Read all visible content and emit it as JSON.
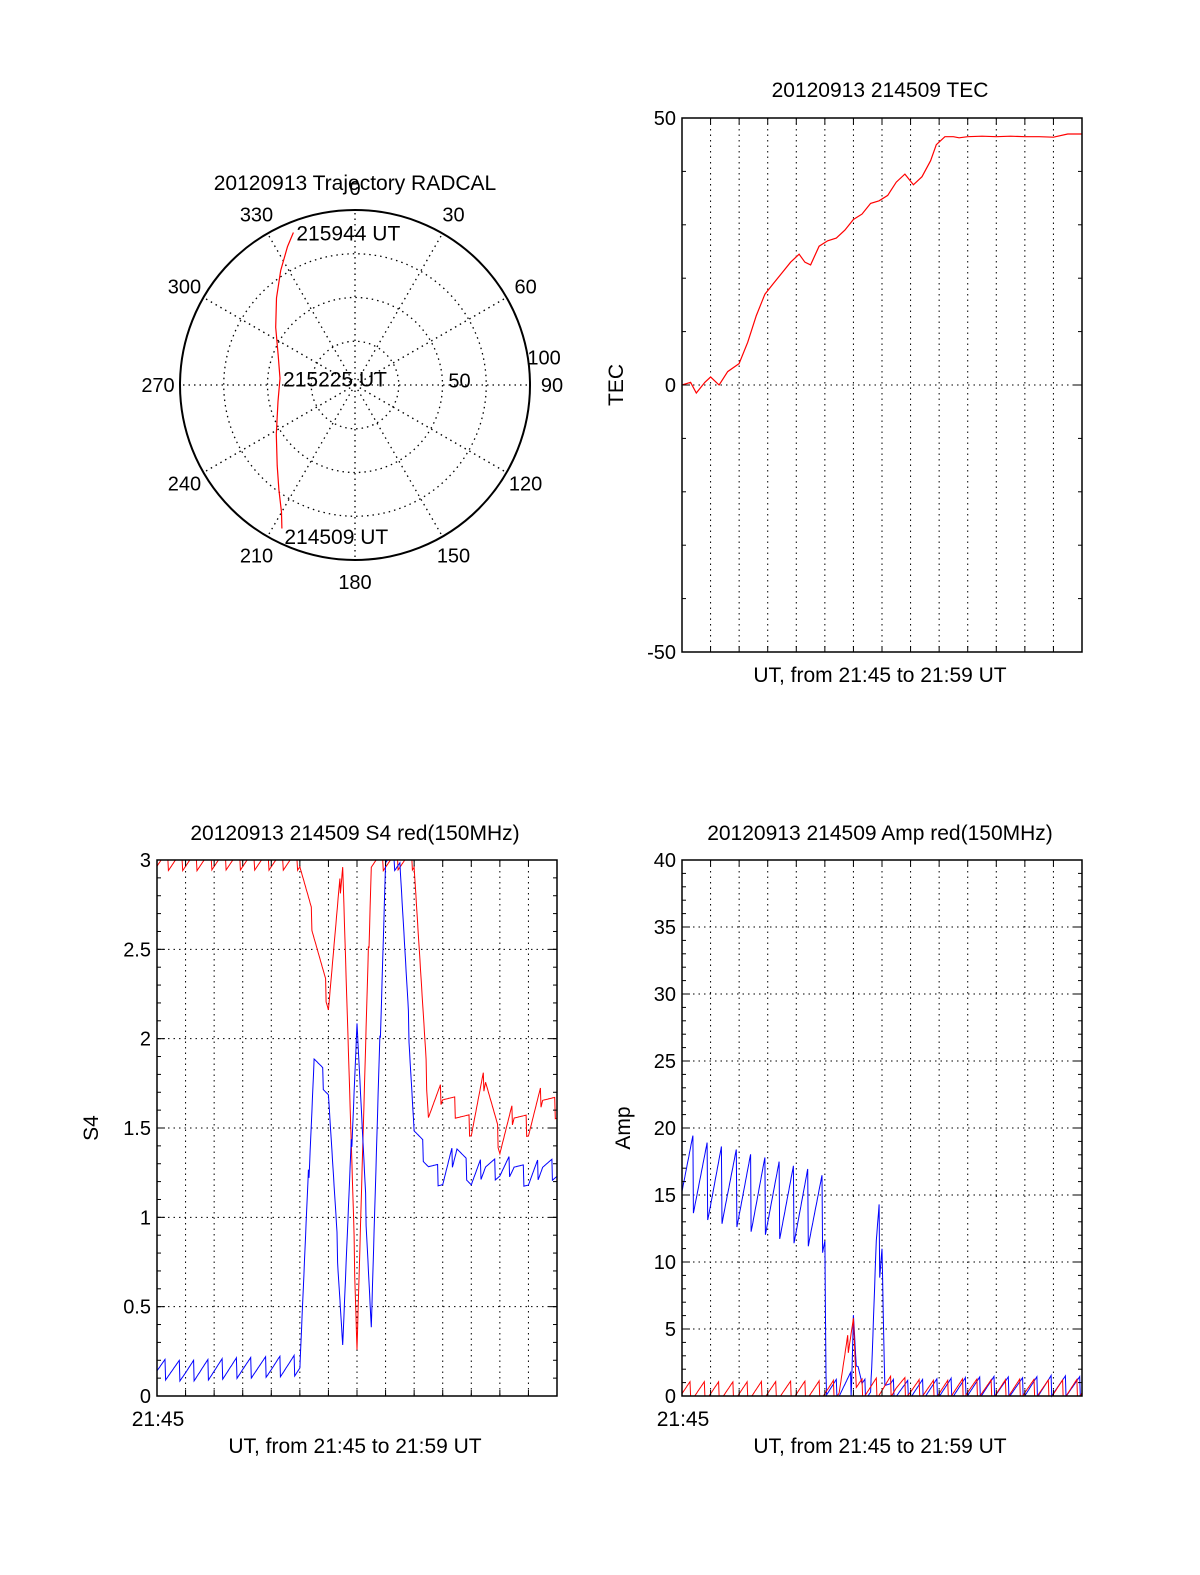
{
  "colors": {
    "red": "#ff0000",
    "blue": "#0000ff",
    "axis": "#000000",
    "grid": "#000000"
  },
  "chart_data": [
    {
      "type": "polar",
      "title": "20120913 Trajectory RADCAL",
      "azimuth_labels": [
        "0",
        "30",
        "60",
        "90",
        "120",
        "150",
        "180",
        "210",
        "240",
        "270",
        "300",
        "330"
      ],
      "radius_labels": [
        "50",
        "100"
      ],
      "rlim": [
        0,
        100
      ],
      "grid": true,
      "series": [
        {
          "color": "#ff0000",
          "points": [
            [
              207,
              92
            ],
            [
              210,
              84
            ],
            [
              216,
              74
            ],
            [
              224,
              64
            ],
            [
              238,
              53
            ],
            [
              258,
              45
            ],
            [
              275,
              43
            ],
            [
              291,
              47
            ],
            [
              306,
              56
            ],
            [
              318,
              67
            ],
            [
              327,
              78
            ],
            [
              334,
              88
            ],
            [
              338,
              94
            ]
          ]
        }
      ],
      "annotations": [
        {
          "text": "214509 UT",
          "at_az": 206,
          "at_r": 96
        },
        {
          "text": "215225 UT",
          "at_az": 275,
          "at_r": 43
        },
        {
          "text": "215944 UT",
          "at_az": 338,
          "at_r": 94
        }
      ]
    },
    {
      "type": "line",
      "title": "20120913 214509 TEC",
      "ylabel": "TEC",
      "xlabel": "UT, from 21:45 to 21:59 UT",
      "xlim": [
        0,
        14
      ],
      "ylim": [
        -50,
        50
      ],
      "yticks": [
        "50",
        "0",
        "-50"
      ],
      "grid": true,
      "series": [
        {
          "color": "#ff0000",
          "x": [
            0,
            0.3,
            0.5,
            0.8,
            1.0,
            1.3,
            1.6,
            2.0,
            2.3,
            2.6,
            2.9,
            3.2,
            3.5,
            3.8,
            4.1,
            4.3,
            4.5,
            4.8,
            5.1,
            5.4,
            5.7,
            6.0,
            6.3,
            6.6,
            6.9,
            7.2,
            7.5,
            7.8,
            8.1,
            8.4,
            8.7,
            8.9,
            9.2,
            9.5,
            9.7,
            10.0,
            10.5,
            11.0,
            11.5,
            12.0,
            12.5,
            13.0,
            13.5,
            14.0
          ],
          "y": [
            0,
            0.5,
            -1.5,
            0.5,
            1.5,
            0,
            2.5,
            4,
            8,
            13,
            17,
            19,
            21,
            23,
            24.5,
            23,
            22.5,
            26,
            27,
            27.5,
            29,
            31,
            32,
            34,
            34.5,
            35.5,
            38,
            39.5,
            37.5,
            39,
            42,
            45,
            46.5,
            46.5,
            46.3,
            46.5,
            46.6,
            46.5,
            46.6,
            46.5,
            46.5,
            46.4,
            47,
            47
          ]
        }
      ]
    },
    {
      "type": "line",
      "title": "20120913 214509 S4 red(150MHz)",
      "ylabel": "S4",
      "xlabel": "UT, from 21:45 to 21:59 UT",
      "x_start_label": "21:45",
      "xlim": [
        0,
        14
      ],
      "ylim": [
        0,
        3
      ],
      "yticks": [
        "0",
        "0.5",
        "1",
        "1.5",
        "2",
        "2.5",
        "3"
      ],
      "grid": true,
      "series": [
        {
          "color": "#ff0000",
          "x": [
            0,
            1,
            2,
            3,
            4,
            5,
            6,
            6.5,
            7,
            7.5,
            8,
            8.5,
            9,
            9.5,
            10,
            10.5,
            11,
            11.5,
            12,
            12.5,
            13,
            13.5,
            14
          ],
          "y": [
            3,
            3,
            3,
            3,
            3,
            3,
            2.2,
            3,
            0.3,
            3,
            3,
            3,
            3,
            1.6,
            1.7,
            1.6,
            1.5,
            1.8,
            1.4,
            1.6,
            1.5,
            1.7,
            1.6
          ]
        },
        {
          "color": "#0000ff",
          "x": [
            0,
            1,
            2,
            3,
            4,
            5,
            5.5,
            6,
            6.5,
            7,
            7.5,
            8,
            8.5,
            9,
            9.5,
            10,
            10.5,
            11,
            11.5,
            12,
            12.5,
            13,
            13.5,
            14
          ],
          "y": [
            0.15,
            0.14,
            0.15,
            0.16,
            0.16,
            0.17,
            1.9,
            1.7,
            0.3,
            2.1,
            0.4,
            3,
            3,
            1.5,
            1.3,
            1.2,
            1.4,
            1.2,
            1.3,
            1.25,
            1.3,
            1.2,
            1.3,
            1.25
          ]
        }
      ]
    },
    {
      "type": "line",
      "title": "20120913 214509 Amp red(150MHz)",
      "ylabel": "Amp",
      "xlabel": "UT, from 21:45 to 21:59 UT",
      "x_start_label": "21:45",
      "xlim": [
        0,
        14
      ],
      "ylim": [
        0,
        40
      ],
      "yticks": [
        "0",
        "5",
        "10",
        "15",
        "20",
        "25",
        "30",
        "35",
        "40"
      ],
      "grid": true,
      "series": [
        {
          "color": "#0000ff",
          "x": [
            0,
            0.5,
            1,
            1.5,
            2,
            2.5,
            3,
            3.5,
            4,
            4.5,
            5,
            5.05,
            5.5,
            5.9,
            6.0,
            6.1,
            6.3,
            6.6,
            6.8,
            7.0,
            7.1,
            7.3,
            7.6,
            8,
            9,
            10,
            11,
            12,
            13,
            14
          ],
          "y": [
            17,
            16.5,
            16,
            15.8,
            15.3,
            15,
            14.8,
            14.5,
            14.2,
            14,
            13.5,
            0.4,
            0.5,
            1,
            8,
            3,
            0.5,
            0.5,
            10,
            13,
            1,
            0.5,
            0.5,
            0.4,
            0.5,
            0.6,
            0.7,
            0.6,
            0.8,
            0.7
          ],
          "band": 6
        },
        {
          "color": "#ff0000",
          "x": [
            0,
            1,
            2,
            3,
            4,
            5,
            5.5,
            6.0,
            6.1,
            6.3,
            7,
            7.5,
            8,
            9,
            10,
            11,
            12,
            13,
            14
          ],
          "y": [
            0.3,
            0.3,
            0.3,
            0.35,
            0.3,
            0.35,
            0.4,
            6,
            0.5,
            0.5,
            0.6,
            0.8,
            0.5,
            0.4,
            0.5,
            0.4,
            0.5,
            0.4,
            0.5
          ]
        }
      ]
    }
  ]
}
